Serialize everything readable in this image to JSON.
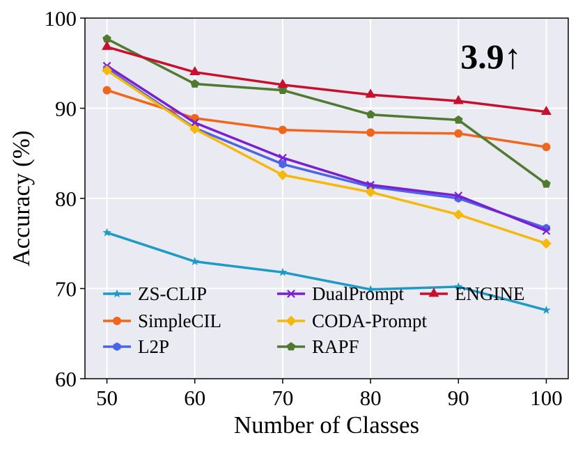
{
  "chart_data": {
    "type": "line",
    "title": "",
    "xlabel": "Number of Classes",
    "ylabel": "Accuracy (%)",
    "x": [
      50,
      60,
      70,
      80,
      90,
      100
    ],
    "xlim": [
      47.5,
      102.5
    ],
    "ylim": [
      60,
      100
    ],
    "xticks": [
      50,
      60,
      70,
      80,
      90,
      100
    ],
    "yticks": [
      60,
      70,
      80,
      90,
      100
    ],
    "grid": true,
    "legend_position": "lower-left",
    "annotation": "3.9↑",
    "series": [
      {
        "name": "ZS-CLIP",
        "color": "#1e9ac7",
        "marker": "star",
        "values": [
          76.2,
          73.0,
          71.8,
          69.9,
          70.2,
          67.6
        ]
      },
      {
        "name": "SimpleCIL",
        "color": "#f0661c",
        "marker": "circle",
        "values": [
          92.0,
          88.9,
          87.6,
          87.3,
          87.2,
          85.7
        ]
      },
      {
        "name": "L2P",
        "color": "#4c64e6",
        "marker": "hexagon",
        "values": [
          94.4,
          87.8,
          83.8,
          81.3,
          80.0,
          76.7
        ]
      },
      {
        "name": "DualPrompt",
        "color": "#7a1fd1",
        "marker": "x",
        "values": [
          94.7,
          88.4,
          84.5,
          81.5,
          80.3,
          76.4
        ]
      },
      {
        "name": "CODA-Prompt",
        "color": "#f5b80c",
        "marker": "diamond",
        "values": [
          94.2,
          87.7,
          82.6,
          80.7,
          78.2,
          75.0
        ]
      },
      {
        "name": "RAPF",
        "color": "#4f7a2f",
        "marker": "pentagon",
        "values": [
          97.7,
          92.7,
          92.0,
          89.3,
          88.7,
          81.6
        ]
      },
      {
        "name": "ENGINE",
        "color": "#c8102e",
        "marker": "triangle",
        "values": [
          96.8,
          94.0,
          92.6,
          91.5,
          90.8,
          89.6
        ]
      }
    ]
  }
}
